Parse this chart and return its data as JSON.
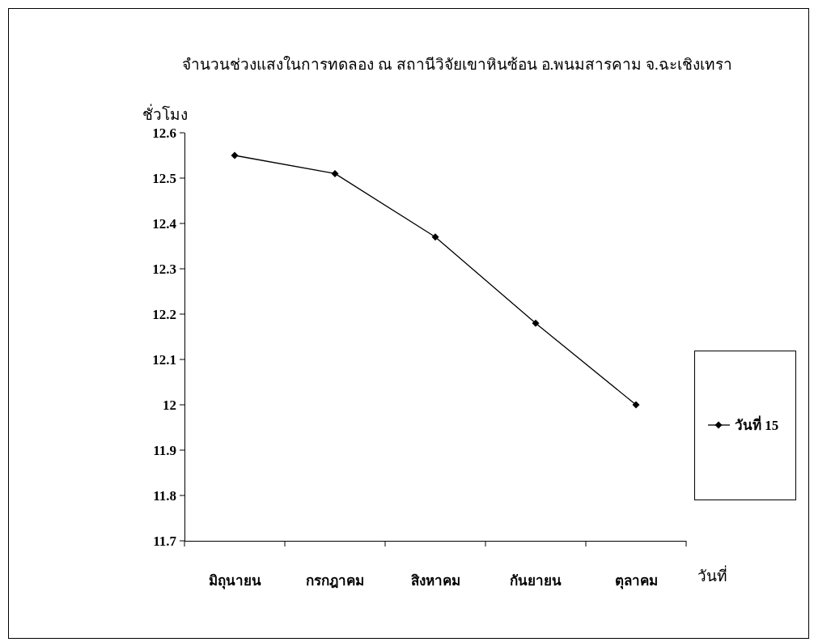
{
  "chart_data": {
    "type": "line",
    "title": "จำนวนช่วงแสงในการทดลอง ณ สถานีวิจัยเขาหินซ้อน อ.พนมสารคาม จ.ฉะเชิงเทรา",
    "xlabel": "วันที่",
    "ylabel": "ชั่วโมง",
    "categories": [
      "มิถุนายน",
      "กรกฎาคม",
      "สิงหาคม",
      "กันยายน",
      "ตุลาคม"
    ],
    "series": [
      {
        "name": "วันที่ 15",
        "color": "#000000",
        "values": [
          12.55,
          12.51,
          12.37,
          12.18,
          12.0
        ]
      }
    ],
    "ylim": [
      11.7,
      12.6
    ],
    "yticks": [
      11.7,
      11.8,
      11.9,
      12,
      12.1,
      12.2,
      12.3,
      12.4,
      12.5,
      12.6
    ],
    "grid": false,
    "legend": "right",
    "marker": "diamond",
    "line_style": "solid"
  }
}
